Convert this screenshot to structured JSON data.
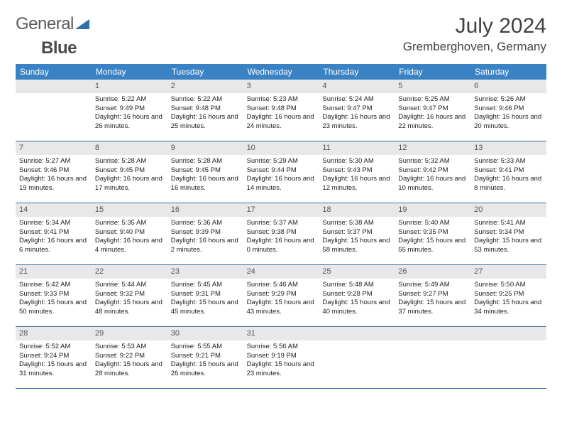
{
  "brand": {
    "part1": "General",
    "part2": "Blue"
  },
  "title": "July 2024",
  "location": "Gremberghoven, Germany",
  "colors": {
    "header_bg": "#3b82c4",
    "header_text": "#ffffff",
    "daynum_bg": "#e8e8e8",
    "rule": "#3b6ea5",
    "logo_blue": "#2f6fae"
  },
  "day_names": [
    "Sunday",
    "Monday",
    "Tuesday",
    "Wednesday",
    "Thursday",
    "Friday",
    "Saturday"
  ],
  "first_weekday_offset": 1,
  "days": [
    {
      "n": 1,
      "sunrise": "5:22 AM",
      "sunset": "9:49 PM",
      "daylight": "16 hours and 26 minutes."
    },
    {
      "n": 2,
      "sunrise": "5:22 AM",
      "sunset": "9:48 PM",
      "daylight": "16 hours and 25 minutes."
    },
    {
      "n": 3,
      "sunrise": "5:23 AM",
      "sunset": "9:48 PM",
      "daylight": "16 hours and 24 minutes."
    },
    {
      "n": 4,
      "sunrise": "5:24 AM",
      "sunset": "9:47 PM",
      "daylight": "16 hours and 23 minutes."
    },
    {
      "n": 5,
      "sunrise": "5:25 AM",
      "sunset": "9:47 PM",
      "daylight": "16 hours and 22 minutes."
    },
    {
      "n": 6,
      "sunrise": "5:26 AM",
      "sunset": "9:46 PM",
      "daylight": "16 hours and 20 minutes."
    },
    {
      "n": 7,
      "sunrise": "5:27 AM",
      "sunset": "9:46 PM",
      "daylight": "16 hours and 19 minutes."
    },
    {
      "n": 8,
      "sunrise": "5:28 AM",
      "sunset": "9:45 PM",
      "daylight": "16 hours and 17 minutes."
    },
    {
      "n": 9,
      "sunrise": "5:28 AM",
      "sunset": "9:45 PM",
      "daylight": "16 hours and 16 minutes."
    },
    {
      "n": 10,
      "sunrise": "5:29 AM",
      "sunset": "9:44 PM",
      "daylight": "16 hours and 14 minutes."
    },
    {
      "n": 11,
      "sunrise": "5:30 AM",
      "sunset": "9:43 PM",
      "daylight": "16 hours and 12 minutes."
    },
    {
      "n": 12,
      "sunrise": "5:32 AM",
      "sunset": "9:42 PM",
      "daylight": "16 hours and 10 minutes."
    },
    {
      "n": 13,
      "sunrise": "5:33 AM",
      "sunset": "9:41 PM",
      "daylight": "16 hours and 8 minutes."
    },
    {
      "n": 14,
      "sunrise": "5:34 AM",
      "sunset": "9:41 PM",
      "daylight": "16 hours and 6 minutes."
    },
    {
      "n": 15,
      "sunrise": "5:35 AM",
      "sunset": "9:40 PM",
      "daylight": "16 hours and 4 minutes."
    },
    {
      "n": 16,
      "sunrise": "5:36 AM",
      "sunset": "9:39 PM",
      "daylight": "16 hours and 2 minutes."
    },
    {
      "n": 17,
      "sunrise": "5:37 AM",
      "sunset": "9:38 PM",
      "daylight": "16 hours and 0 minutes."
    },
    {
      "n": 18,
      "sunrise": "5:38 AM",
      "sunset": "9:37 PM",
      "daylight": "15 hours and 58 minutes."
    },
    {
      "n": 19,
      "sunrise": "5:40 AM",
      "sunset": "9:35 PM",
      "daylight": "15 hours and 55 minutes."
    },
    {
      "n": 20,
      "sunrise": "5:41 AM",
      "sunset": "9:34 PM",
      "daylight": "15 hours and 53 minutes."
    },
    {
      "n": 21,
      "sunrise": "5:42 AM",
      "sunset": "9:33 PM",
      "daylight": "15 hours and 50 minutes."
    },
    {
      "n": 22,
      "sunrise": "5:44 AM",
      "sunset": "9:32 PM",
      "daylight": "15 hours and 48 minutes."
    },
    {
      "n": 23,
      "sunrise": "5:45 AM",
      "sunset": "9:31 PM",
      "daylight": "15 hours and 45 minutes."
    },
    {
      "n": 24,
      "sunrise": "5:46 AM",
      "sunset": "9:29 PM",
      "daylight": "15 hours and 43 minutes."
    },
    {
      "n": 25,
      "sunrise": "5:48 AM",
      "sunset": "9:28 PM",
      "daylight": "15 hours and 40 minutes."
    },
    {
      "n": 26,
      "sunrise": "5:49 AM",
      "sunset": "9:27 PM",
      "daylight": "15 hours and 37 minutes."
    },
    {
      "n": 27,
      "sunrise": "5:50 AM",
      "sunset": "9:25 PM",
      "daylight": "15 hours and 34 minutes."
    },
    {
      "n": 28,
      "sunrise": "5:52 AM",
      "sunset": "9:24 PM",
      "daylight": "15 hours and 31 minutes."
    },
    {
      "n": 29,
      "sunrise": "5:53 AM",
      "sunset": "9:22 PM",
      "daylight": "15 hours and 28 minutes."
    },
    {
      "n": 30,
      "sunrise": "5:55 AM",
      "sunset": "9:21 PM",
      "daylight": "15 hours and 26 minutes."
    },
    {
      "n": 31,
      "sunrise": "5:56 AM",
      "sunset": "9:19 PM",
      "daylight": "15 hours and 23 minutes."
    }
  ],
  "labels": {
    "sunrise": "Sunrise:",
    "sunset": "Sunset:",
    "daylight": "Daylight:"
  }
}
